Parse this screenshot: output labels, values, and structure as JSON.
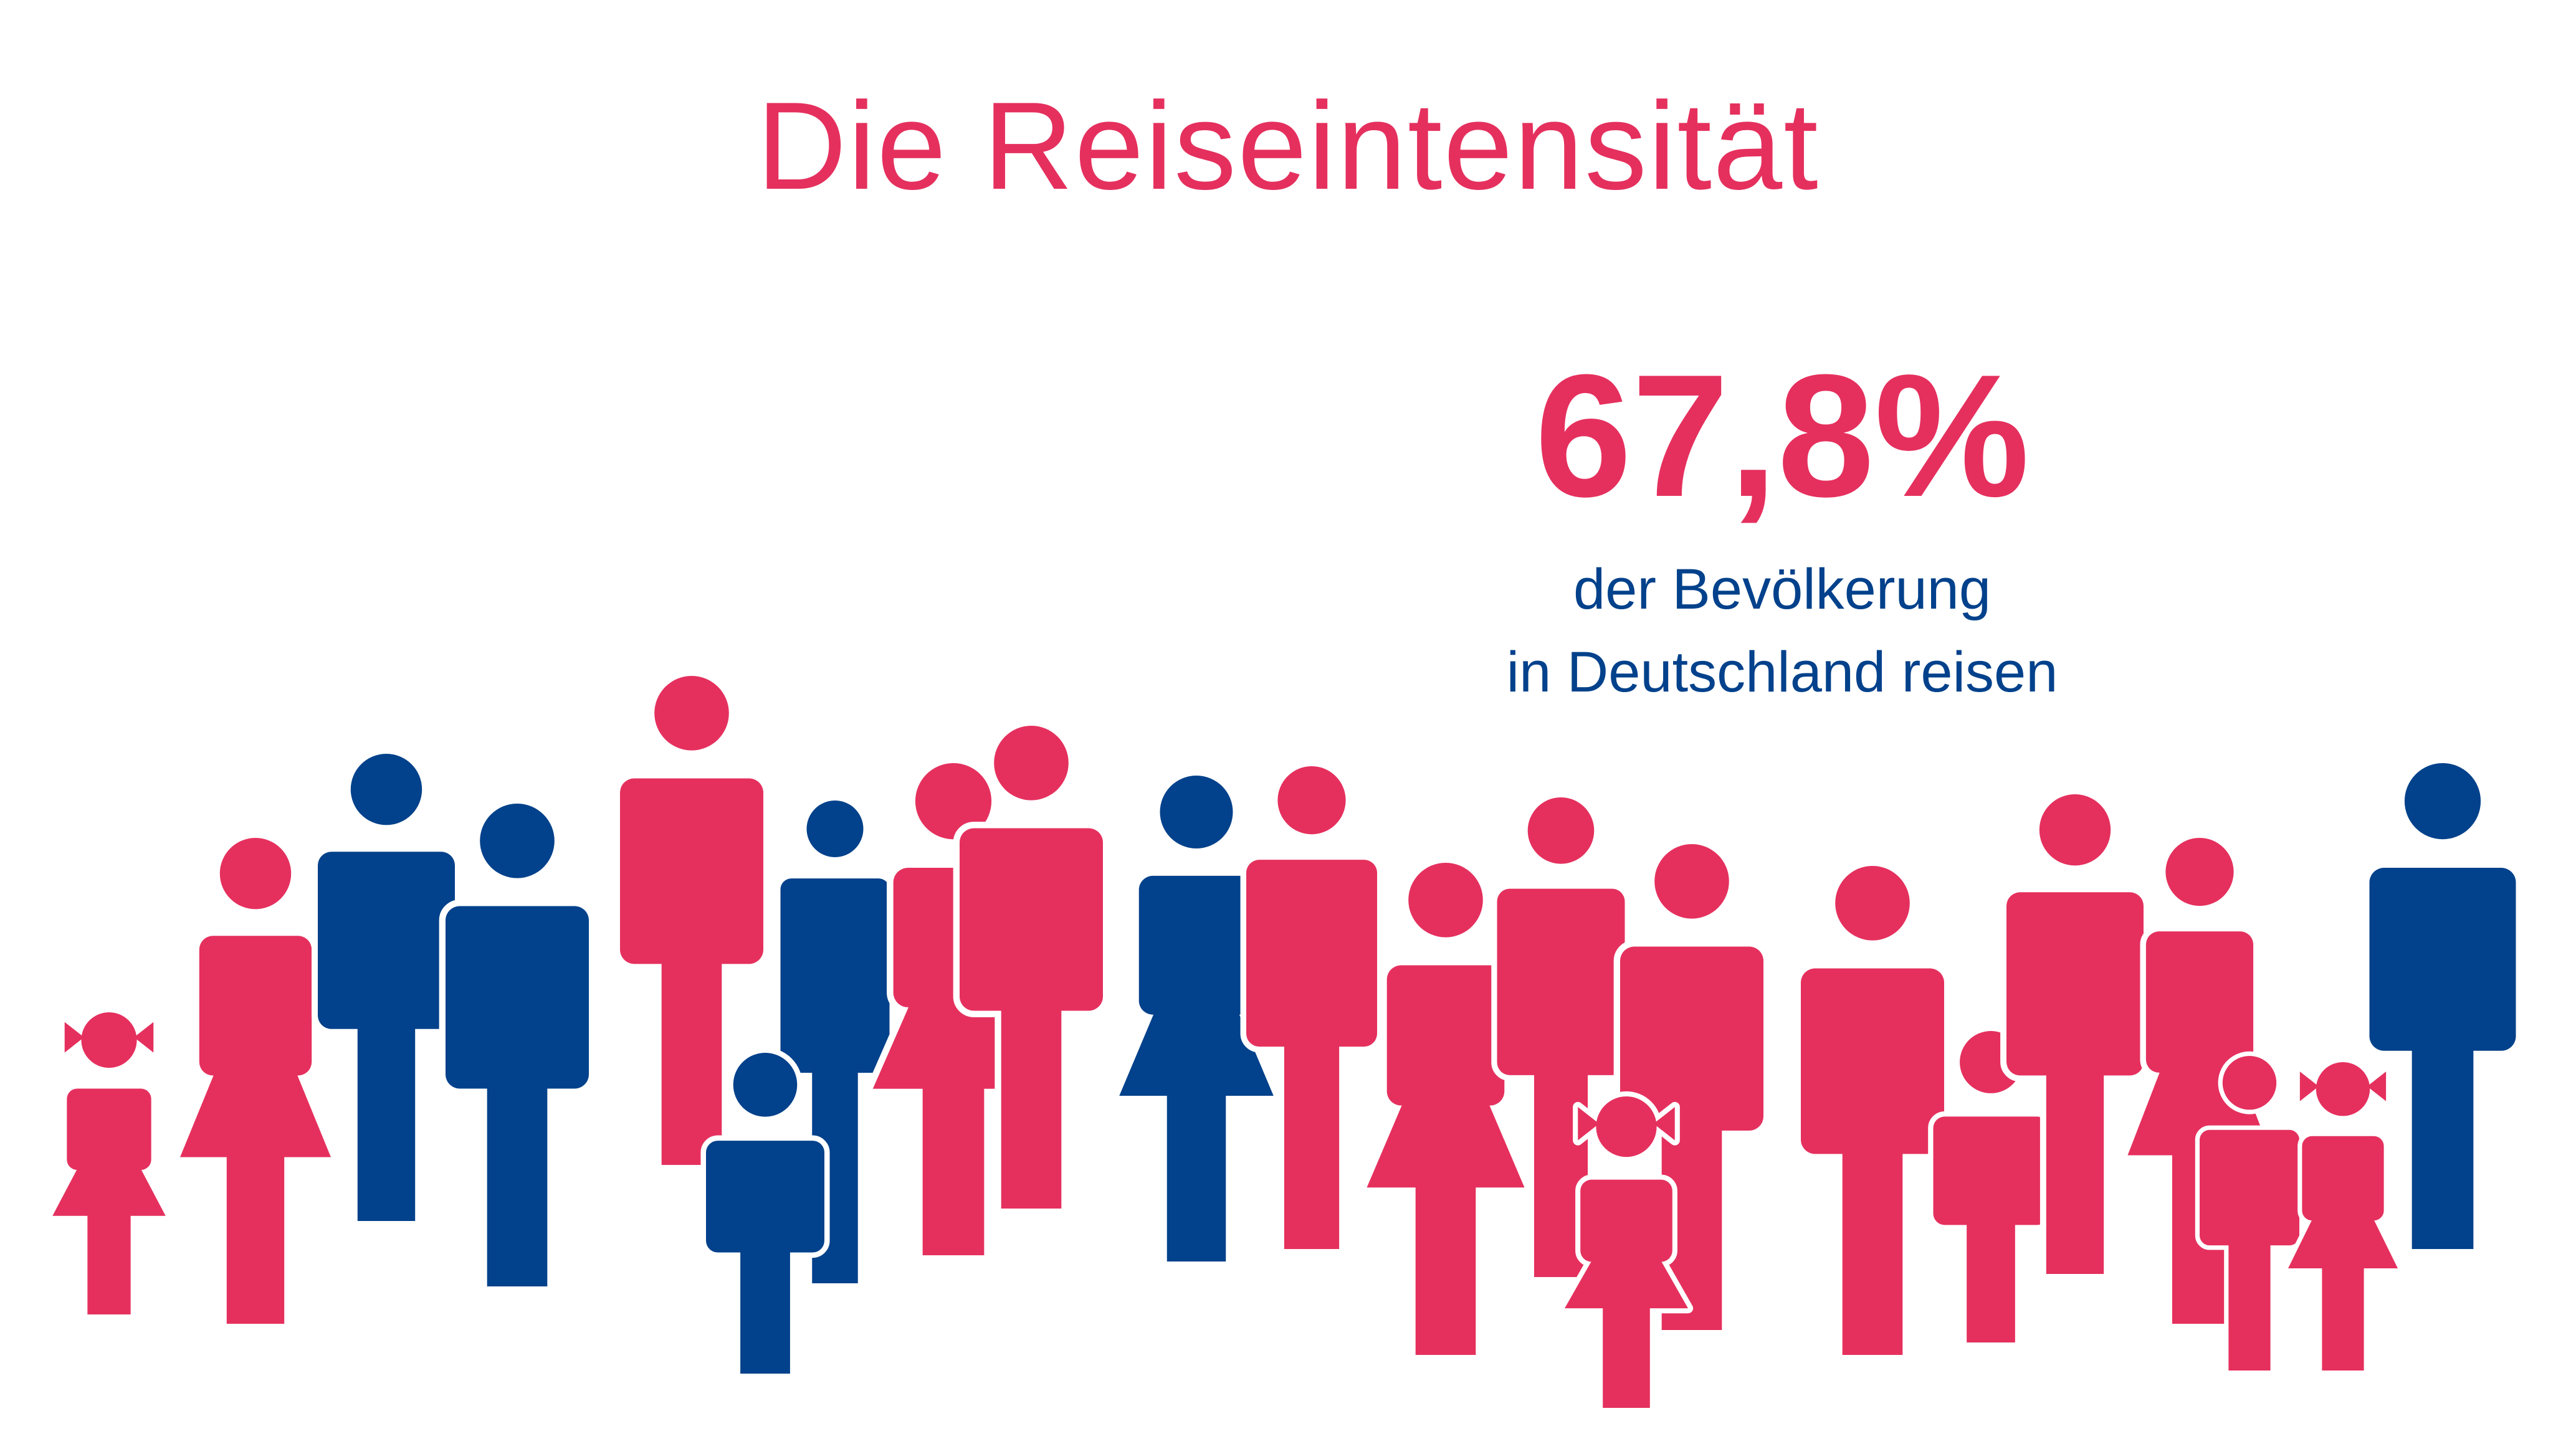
{
  "title": "Die Reiseintensität",
  "statistic": {
    "value": "67,8%",
    "caption_line1": "der Bevölkerung",
    "caption_line2": "in Deutschland reisen"
  },
  "colors": {
    "pink": "#e5305e",
    "blue": "#02418b",
    "background": "#ffffff"
  },
  "people_icons": [
    {
      "kind": "girl-child",
      "color": "pink"
    },
    {
      "kind": "woman",
      "color": "pink"
    },
    {
      "kind": "man",
      "color": "blue"
    },
    {
      "kind": "man",
      "color": "blue"
    },
    {
      "kind": "man",
      "color": "pink"
    },
    {
      "kind": "man",
      "color": "blue"
    },
    {
      "kind": "boy-child",
      "color": "blue"
    },
    {
      "kind": "woman",
      "color": "pink"
    },
    {
      "kind": "man",
      "color": "pink"
    },
    {
      "kind": "woman",
      "color": "blue"
    },
    {
      "kind": "man",
      "color": "pink"
    },
    {
      "kind": "woman",
      "color": "pink"
    },
    {
      "kind": "man",
      "color": "pink"
    },
    {
      "kind": "man",
      "color": "pink"
    },
    {
      "kind": "girl-child",
      "color": "pink"
    },
    {
      "kind": "man",
      "color": "pink"
    },
    {
      "kind": "boy-child",
      "color": "pink"
    },
    {
      "kind": "man",
      "color": "pink"
    },
    {
      "kind": "woman",
      "color": "pink"
    },
    {
      "kind": "boy-child",
      "color": "pink"
    },
    {
      "kind": "girl-child",
      "color": "pink"
    },
    {
      "kind": "man",
      "color": "blue"
    }
  ]
}
